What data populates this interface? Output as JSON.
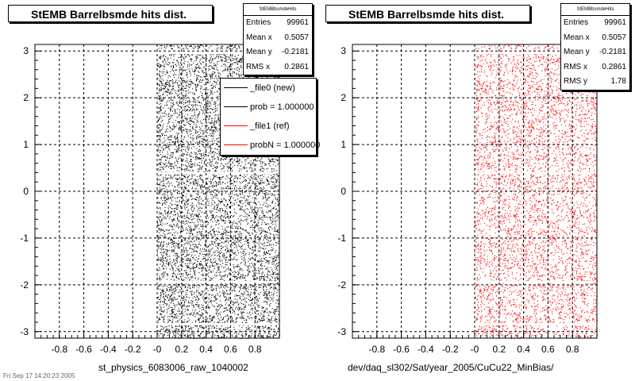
{
  "chart_data": [
    {
      "type": "scatter",
      "title": "StEMB Barrelbsmde hits dist.",
      "xlabel": "st_physics_6083006_raw_1040002",
      "ylabel": "",
      "xlim": [
        -1.0,
        1.0
      ],
      "ylim": [
        -3.14,
        3.14
      ],
      "x_ticks": [
        "-0.8",
        "-0.6",
        "-0.4",
        "-0.2",
        "-0",
        "0.2",
        "0.4",
        "0.6",
        "0.8"
      ],
      "y_ticks": [
        "3",
        "2",
        "1",
        "0",
        "-1",
        "-2",
        "-3"
      ],
      "grid": true,
      "marker_color": "#000000",
      "x_range_filled": [
        0.0,
        1.0
      ],
      "stats": {
        "header": "StEMBbsmdeHits",
        "rows": [
          {
            "label": "Entries",
            "value": "99961"
          },
          {
            "label": "Mean x",
            "value": "0.5057"
          },
          {
            "label": "Mean y",
            "value": "-0.2181"
          },
          {
            "label": "RMS x",
            "value": "0.2861"
          }
        ]
      },
      "legend": [
        {
          "label": "_file0 (new)",
          "color": "#000000"
        },
        {
          "label": "prob = 1.000000",
          "color": "#000000"
        },
        {
          "label": "_file1 (ref)",
          "color": "#ff0000"
        },
        {
          "label": "probN = 1.000000",
          "color": "#ff0000"
        }
      ]
    },
    {
      "type": "scatter",
      "title": "StEMB Barrelbsmde hits dist.",
      "xlabel": "dev/daq_sl302/Sat/year_2005/CuCu22_MinBias/",
      "ylabel": "",
      "xlim": [
        -1.0,
        1.0
      ],
      "ylim": [
        -3.14,
        3.14
      ],
      "x_ticks": [
        "-0.8",
        "-0.6",
        "-0.4",
        "-0.2",
        "-0",
        "0.2",
        "0.4",
        "0.6",
        "0.8"
      ],
      "y_ticks": [
        "3",
        "2",
        "1",
        "0",
        "-1",
        "-2",
        "-3"
      ],
      "grid": true,
      "marker_color": "#ff0000",
      "x_range_filled": [
        0.0,
        1.0
      ],
      "stats": {
        "header": "StEMBbsmdeHits",
        "rows": [
          {
            "label": "Entries",
            "value": "99961"
          },
          {
            "label": "Mean x",
            "value": "0.5057"
          },
          {
            "label": "Mean y",
            "value": "-0.2181"
          },
          {
            "label": "RMS x",
            "value": "0.2861"
          },
          {
            "label": "RMS y",
            "value": "1.78"
          }
        ]
      }
    }
  ],
  "footer": {
    "timestamp": "Fri Sep 17 14:20:23 2005"
  }
}
